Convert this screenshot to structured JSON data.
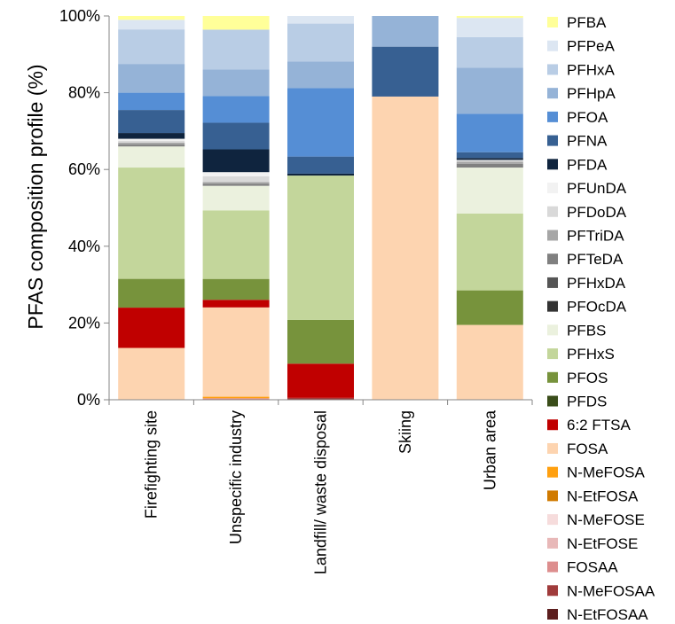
{
  "chart_data": {
    "type": "bar",
    "stacked": true,
    "percent": true,
    "ylabel": "PFAS composition profile (%)",
    "xlabel": "",
    "ylim": [
      0,
      100
    ],
    "y_ticks": [
      "0%",
      "20%",
      "40%",
      "60%",
      "80%",
      "100%"
    ],
    "grid": false,
    "legend_position": "right",
    "categories": [
      "Firefighting site",
      "Unspecific industry",
      "Landfill/ waste disposal",
      "Skiing",
      "Urban area"
    ],
    "series": [
      {
        "name": "N-EtFOSAA",
        "color": "#5c1e1e",
        "values": [
          0,
          0,
          0,
          0,
          0
        ]
      },
      {
        "name": "N-MeFOSAA",
        "color": "#a03b3b",
        "values": [
          0,
          0,
          0.5,
          0,
          0
        ]
      },
      {
        "name": "FOSAA",
        "color": "#dd8e8e",
        "values": [
          0,
          0.4,
          0,
          0,
          0
        ]
      },
      {
        "name": "N-EtFOSE",
        "color": "#e8b8b8",
        "values": [
          0,
          0,
          0,
          0,
          0
        ]
      },
      {
        "name": "N-MeFOSE",
        "color": "#f6dcdc",
        "values": [
          0,
          0,
          0,
          0,
          0
        ]
      },
      {
        "name": "N-EtFOSA",
        "color": "#d07a00",
        "values": [
          0,
          0,
          0,
          0,
          0
        ]
      },
      {
        "name": "N-MeFOSA",
        "color": "#ffa010",
        "values": [
          0,
          0.4,
          0,
          0,
          0
        ]
      },
      {
        "name": "FOSA",
        "color": "#fdd4b0",
        "values": [
          13.5,
          23.5,
          0,
          79,
          19.5
        ]
      },
      {
        "name": "6:2 FTSA",
        "color": "#c00000",
        "values": [
          10.5,
          2,
          9,
          0,
          0
        ]
      },
      {
        "name": "PFDS",
        "color": "#3a4d1a",
        "values": [
          0,
          0,
          0,
          0,
          0
        ]
      },
      {
        "name": "PFOS",
        "color": "#77933c",
        "values": [
          7.5,
          5.5,
          11.5,
          0,
          9
        ]
      },
      {
        "name": "PFHxS",
        "color": "#c3d69b",
        "values": [
          29,
          18,
          38,
          0,
          20
        ]
      },
      {
        "name": "PFBS",
        "color": "#ebf1de",
        "values": [
          5.5,
          6.5,
          0,
          0,
          12
        ]
      },
      {
        "name": "PFOcDA",
        "color": "#333333",
        "values": [
          0,
          0,
          0,
          0,
          0
        ]
      },
      {
        "name": "PFHxDA",
        "color": "#555555",
        "values": [
          0,
          0,
          0,
          0,
          0
        ]
      },
      {
        "name": "PFTeDA",
        "color": "#808080",
        "values": [
          0.5,
          0.5,
          0,
          0,
          1
        ]
      },
      {
        "name": "PFTriDA",
        "color": "#a6a6a6",
        "values": [
          0.5,
          0.5,
          0,
          0,
          0.5
        ]
      },
      {
        "name": "PFDoDA",
        "color": "#d9d9d9",
        "values": [
          0.5,
          1.5,
          0,
          0,
          0.5
        ]
      },
      {
        "name": "PFUnDA",
        "color": "#f2f2f2",
        "values": [
          0.5,
          1.1,
          0,
          0,
          0
        ]
      },
      {
        "name": "PFDA",
        "color": "#0f243e",
        "values": [
          1.5,
          6,
          0.5,
          0,
          0.5
        ]
      },
      {
        "name": "PFNA",
        "color": "#376092",
        "values": [
          6,
          7,
          4.5,
          13,
          1.5
        ]
      },
      {
        "name": "PFOA",
        "color": "#558ed5",
        "values": [
          4.5,
          7,
          18,
          0,
          10
        ]
      },
      {
        "name": "PFHpA",
        "color": "#95b3d7",
        "values": [
          7.5,
          7,
          7,
          8,
          12
        ]
      },
      {
        "name": "PFHxA",
        "color": "#b9cde5",
        "values": [
          9,
          10.5,
          10,
          0,
          8
        ]
      },
      {
        "name": "PFPeA",
        "color": "#dce6f2",
        "values": [
          2.5,
          0,
          2,
          0,
          5
        ]
      },
      {
        "name": "PFBA",
        "color": "#ffff99",
        "values": [
          1,
          3.6,
          0,
          0,
          0.5
        ]
      }
    ]
  }
}
